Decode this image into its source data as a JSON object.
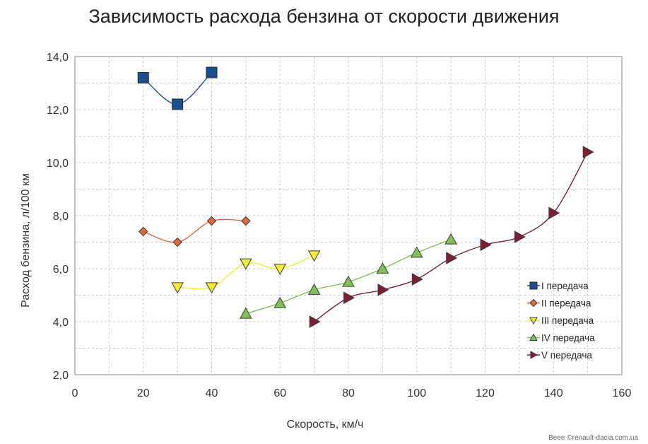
{
  "chart_data": {
    "type": "line",
    "title": "Зависимость расхода бензина от скорости движения",
    "xlabel": "Скорость, км/ч",
    "ylabel": "Расход бензина, л/100 км",
    "xlim": [
      0,
      160
    ],
    "ylim": [
      2,
      14
    ],
    "xticks": [
      "0",
      "20",
      "40",
      "60",
      "80",
      "100",
      "120",
      "140",
      "160"
    ],
    "yticks": [
      "2,0",
      "4,0",
      "6,0",
      "8,0",
      "10,0",
      "12,0",
      "14,0"
    ],
    "grid": true,
    "legend_position": "right",
    "series": [
      {
        "name": "I передача",
        "marker": "square",
        "color": "#1f4e8c",
        "x": [
          20,
          30,
          40
        ],
        "y": [
          13.2,
          12.2,
          13.4
        ]
      },
      {
        "name": "II передача",
        "marker": "diamond",
        "color": "#e2673a",
        "x": [
          20,
          30,
          40,
          50
        ],
        "y": [
          7.4,
          7.0,
          7.8,
          7.8
        ]
      },
      {
        "name": "III передача",
        "marker": "triangle-down",
        "color": "#f2ea3a",
        "x": [
          30,
          40,
          50,
          60,
          70
        ],
        "y": [
          5.3,
          5.3,
          6.2,
          6.0,
          6.5
        ]
      },
      {
        "name": "IV передача",
        "marker": "triangle-up",
        "color": "#7fc254",
        "x": [
          50,
          60,
          70,
          80,
          90,
          100,
          110
        ],
        "y": [
          4.3,
          4.7,
          5.2,
          5.5,
          6.0,
          6.6,
          7.1
        ]
      },
      {
        "name": "V передача",
        "marker": "triangle-right",
        "color": "#7b1f35",
        "x": [
          70,
          80,
          90,
          100,
          110,
          120,
          130,
          140,
          150
        ],
        "y": [
          4.0,
          4.9,
          5.2,
          5.6,
          6.4,
          6.9,
          7.2,
          8.1,
          10.4
        ]
      }
    ]
  },
  "watermark": "Beee ©renault-dacia.com.ua"
}
